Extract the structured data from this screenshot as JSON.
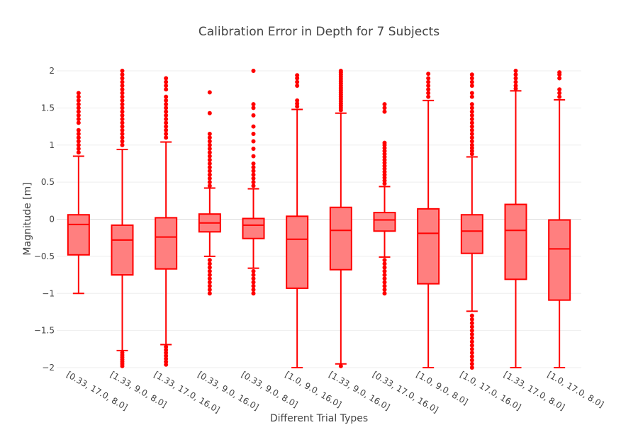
{
  "chart_data": {
    "type": "box",
    "title": "Calibration Error in Depth for 7 Subjects",
    "xlabel": "Different Trial Types",
    "ylabel": "Magnitude [m]",
    "ylim": [
      -2,
      2
    ],
    "yticks": [
      2,
      1.5,
      1,
      0.5,
      0,
      -0.5,
      -1,
      -1.5,
      -2
    ],
    "ytick_labels": [
      "2",
      "1.5",
      "1",
      "0.5",
      "0",
      "−0.5",
      "−1",
      "−1.5",
      "−2"
    ],
    "grid": true,
    "colors": {
      "line": "#ff0000",
      "fill": "#ff7f7f",
      "outlier": "#ff0000"
    },
    "categories": [
      "[0.33, 17.0, 8.0]",
      "[1.33, 9.0, 8.0]",
      "[1.33, 17.0, 16.0]",
      "[0.33, 9.0, 16.0]",
      "[0.33, 9.0, 8.0]",
      "[1.0, 9.0, 16.0]",
      "[1.33, 9.0, 16.0]",
      "[0.33, 17.0, 16.0]",
      "[1.0, 9.0, 8.0]",
      "[1.0, 17.0, 16.0]",
      "[1.33, 17.0, 8.0]",
      "[1.0, 17.0, 8.0]"
    ],
    "boxes": [
      {
        "q1": -0.48,
        "median": -0.07,
        "q3": 0.06,
        "whisker_low": -1.0,
        "whisker_high": 0.85,
        "outliers_high": [
          0.9,
          0.95,
          1.0,
          1.05,
          1.1,
          1.15,
          1.2,
          1.3,
          1.35,
          1.4,
          1.45,
          1.5,
          1.55,
          1.6,
          1.65,
          1.7
        ],
        "outliers_low": []
      },
      {
        "q1": -0.75,
        "median": -0.28,
        "q3": -0.08,
        "whisker_low": -1.77,
        "whisker_high": 0.94,
        "outliers_high": [
          1.0,
          1.05,
          1.1,
          1.15,
          1.2,
          1.25,
          1.3,
          1.35,
          1.4,
          1.45,
          1.5,
          1.55,
          1.6,
          1.65,
          1.7,
          1.75,
          1.8,
          1.85,
          1.9,
          1.95,
          2.0
        ],
        "outliers_low": [
          -1.8,
          -1.83,
          -1.86,
          -1.89,
          -1.92,
          -1.95,
          -1.98
        ]
      },
      {
        "q1": -0.67,
        "median": -0.24,
        "q3": 0.02,
        "whisker_low": -1.69,
        "whisker_high": 1.04,
        "outliers_high": [
          1.1,
          1.15,
          1.2,
          1.25,
          1.3,
          1.35,
          1.4,
          1.45,
          1.5,
          1.55,
          1.6,
          1.65,
          1.75,
          1.8,
          1.85,
          1.9
        ],
        "outliers_low": [
          -1.72,
          -1.76,
          -1.8,
          -1.84,
          -1.88,
          -1.92,
          -1.96
        ]
      },
      {
        "q1": -0.17,
        "median": -0.05,
        "q3": 0.07,
        "whisker_low": -0.5,
        "whisker_high": 0.42,
        "outliers_high": [
          0.45,
          0.5,
          0.55,
          0.6,
          0.65,
          0.7,
          0.75,
          0.8,
          0.85,
          0.9,
          0.95,
          1.0,
          1.05,
          1.1,
          1.15,
          1.43,
          1.71
        ],
        "outliers_low": [
          -0.55,
          -0.6,
          -0.65,
          -0.7,
          -0.75,
          -0.8,
          -0.85,
          -0.9,
          -0.95,
          -1.0
        ]
      },
      {
        "q1": -0.26,
        "median": -0.08,
        "q3": 0.01,
        "whisker_low": -0.66,
        "whisker_high": 0.41,
        "outliers_high": [
          0.45,
          0.5,
          0.55,
          0.6,
          0.65,
          0.7,
          0.75,
          0.85,
          0.95,
          1.05,
          1.15,
          1.25,
          1.4,
          1.5,
          1.55,
          2.0
        ],
        "outliers_low": [
          -0.7,
          -0.75,
          -0.8,
          -0.85,
          -0.9,
          -0.95,
          -1.0
        ]
      },
      {
        "q1": -0.93,
        "median": -0.27,
        "q3": 0.04,
        "whisker_low": -2.0,
        "whisker_high": 1.48,
        "outliers_high": [
          1.52,
          1.56,
          1.6,
          1.8,
          1.85,
          1.9,
          1.94
        ],
        "outliers_low": []
      },
      {
        "q1": -0.68,
        "median": -0.15,
        "q3": 0.16,
        "whisker_low": -1.95,
        "whisker_high": 1.43,
        "outliers_high": [
          1.47,
          1.5,
          1.53,
          1.56,
          1.59,
          1.62,
          1.65,
          1.68,
          1.71,
          1.74,
          1.77,
          1.8,
          1.83,
          1.86,
          1.89,
          1.92,
          1.95,
          1.98,
          2.0
        ],
        "outliers_low": [
          -1.98
        ]
      },
      {
        "q1": -0.16,
        "median": -0.01,
        "q3": 0.09,
        "whisker_low": -0.51,
        "whisker_high": 0.44,
        "outliers_high": [
          0.48,
          0.52,
          0.56,
          0.6,
          0.64,
          0.68,
          0.72,
          0.76,
          0.8,
          0.84,
          0.88,
          0.92,
          0.96,
          1.0,
          1.03,
          1.45,
          1.5,
          1.55
        ],
        "outliers_low": [
          -0.55,
          -0.6,
          -0.65,
          -0.7,
          -0.75,
          -0.8,
          -0.85,
          -0.9,
          -0.95,
          -1.0
        ]
      },
      {
        "q1": -0.87,
        "median": -0.19,
        "q3": 0.14,
        "whisker_low": -2.0,
        "whisker_high": 1.6,
        "outliers_high": [
          1.65,
          1.7,
          1.75,
          1.8,
          1.85,
          1.9,
          1.96
        ],
        "outliers_low": []
      },
      {
        "q1": -0.46,
        "median": -0.16,
        "q3": 0.06,
        "whisker_low": -1.24,
        "whisker_high": 0.84,
        "outliers_high": [
          0.88,
          0.92,
          0.96,
          1.0,
          1.05,
          1.1,
          1.15,
          1.2,
          1.25,
          1.3,
          1.35,
          1.4,
          1.45,
          1.5,
          1.55,
          1.65,
          1.7,
          1.8,
          1.85,
          1.9,
          1.95
        ],
        "outliers_low": [
          -1.3,
          -1.35,
          -1.4,
          -1.45,
          -1.5,
          -1.55,
          -1.6,
          -1.65,
          -1.7,
          -1.75,
          -1.8,
          -1.85,
          -1.9,
          -1.95,
          -2.0
        ]
      },
      {
        "q1": -0.81,
        "median": -0.15,
        "q3": 0.2,
        "whisker_low": -2.0,
        "whisker_high": 1.73,
        "outliers_high": [
          1.76,
          1.8,
          1.85,
          1.9,
          1.95,
          2.0
        ],
        "outliers_low": []
      },
      {
        "q1": -1.09,
        "median": -0.4,
        "q3": -0.01,
        "whisker_low": -2.0,
        "whisker_high": 1.61,
        "outliers_high": [
          1.65,
          1.7,
          1.75,
          1.9,
          1.95,
          1.98
        ],
        "outliers_low": []
      }
    ]
  }
}
